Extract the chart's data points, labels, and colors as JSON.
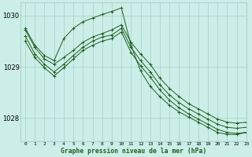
{
  "title": "Graphe pression niveau de la mer (hPa)",
  "bg_color": "#cceee8",
  "grid_color": "#aad4ce",
  "line_color": "#1e5e1e",
  "xlim": [
    -0.5,
    23
  ],
  "ylim": [
    1027.55,
    1030.25
  ],
  "yticks": [
    1028,
    1029,
    1030
  ],
  "series": [
    [
      1029.72,
      1029.38,
      1029.15,
      1029.05,
      1029.18,
      1029.32,
      1029.48,
      1029.58,
      1029.65,
      1029.72,
      1029.82,
      1029.48,
      1029.25,
      1029.05,
      1028.78,
      1028.58,
      1028.42,
      1028.28,
      1028.18,
      1028.08,
      1027.98,
      1027.92,
      1027.9,
      1027.92
    ],
    [
      1029.6,
      1029.25,
      1029.05,
      1028.9,
      1029.05,
      1029.22,
      1029.38,
      1029.5,
      1029.58,
      1029.62,
      1029.75,
      1029.38,
      1029.12,
      1028.9,
      1028.65,
      1028.45,
      1028.3,
      1028.18,
      1028.08,
      1027.98,
      1027.88,
      1027.82,
      1027.8,
      1027.82
    ],
    [
      1029.5,
      1029.18,
      1028.98,
      1028.82,
      1028.98,
      1029.15,
      1029.32,
      1029.42,
      1029.5,
      1029.55,
      1029.68,
      1029.28,
      1029.02,
      1028.8,
      1028.55,
      1028.35,
      1028.2,
      1028.08,
      1027.98,
      1027.88,
      1027.78,
      1027.72,
      1027.7,
      1027.72
    ],
    [
      1029.75,
      1029.42,
      1029.22,
      1029.12,
      1029.55,
      1029.75,
      1029.88,
      1029.95,
      1030.02,
      1030.08,
      1030.15,
      1029.42,
      1028.92,
      1028.62,
      1028.42,
      1028.25,
      1028.12,
      1028.02,
      1027.92,
      1027.82,
      1027.72,
      1027.68,
      1027.68,
      1027.72
    ]
  ]
}
